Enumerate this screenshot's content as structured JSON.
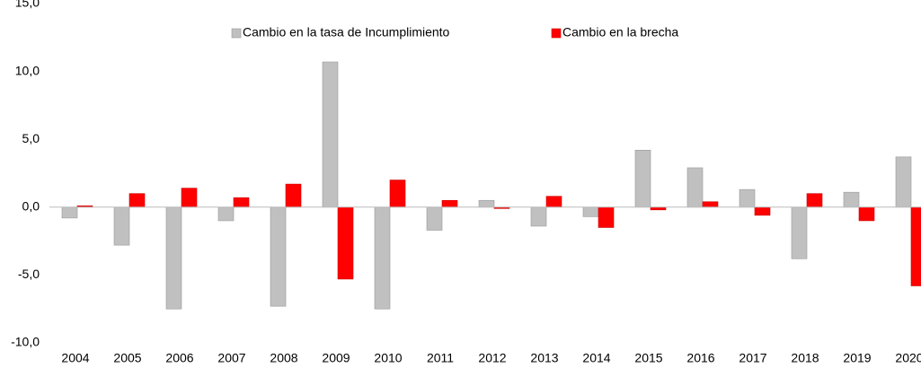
{
  "chart_data": {
    "type": "bar",
    "categories": [
      "2004",
      "2005",
      "2006",
      "2007",
      "2008",
      "2009",
      "2010",
      "2011",
      "2012",
      "2013",
      "2014",
      "2015",
      "2016",
      "2017",
      "2018",
      "2019",
      "2020"
    ],
    "series": [
      {
        "name": "Cambio en la tasa de Incumplimiento",
        "color": "#c0c0c0",
        "values": [
          -0.8,
          -2.8,
          -7.5,
          -1.0,
          -7.3,
          10.7,
          -7.5,
          -1.7,
          0.5,
          -1.4,
          -0.7,
          4.2,
          2.9,
          1.3,
          -3.8,
          1.1,
          3.7
        ]
      },
      {
        "name": "Cambio en la brecha",
        "color": "#ff0000",
        "values": [
          0.1,
          1.0,
          1.4,
          0.7,
          1.7,
          -5.3,
          2.0,
          0.5,
          -0.1,
          0.8,
          -1.5,
          -0.2,
          0.4,
          -0.6,
          1.0,
          -1.0,
          -5.8
        ]
      }
    ],
    "ylim": [
      -10,
      15
    ],
    "yticks": [
      {
        "value": -10,
        "label": "-10,0"
      },
      {
        "value": -5,
        "label": "-5,0"
      },
      {
        "value": 0,
        "label": "0,0"
      },
      {
        "value": 5,
        "label": "5,0"
      },
      {
        "value": 10,
        "label": "10,0"
      },
      {
        "value": 15,
        "label": "15,0"
      }
    ],
    "legend": "top"
  }
}
